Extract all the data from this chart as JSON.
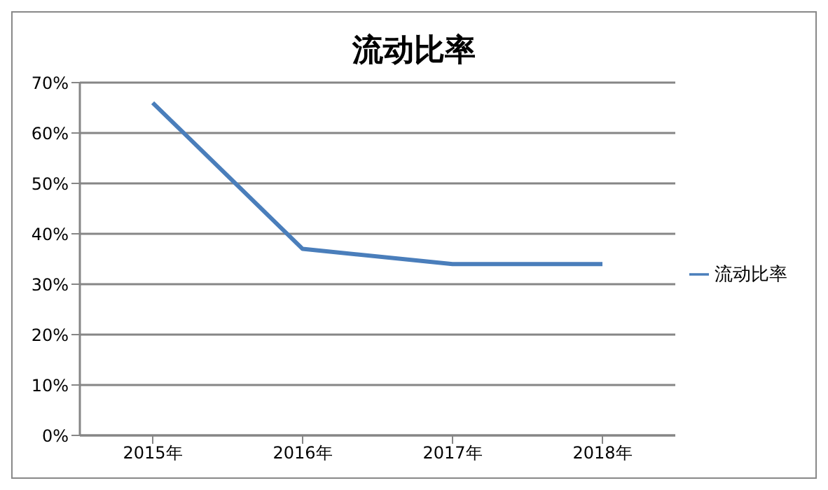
{
  "chart_data": {
    "type": "line",
    "title": "流动比率",
    "categories": [
      "2015年",
      "2016年",
      "2017年",
      "2018年"
    ],
    "series": [
      {
        "name": "流动比率",
        "color": "#4a7ebb",
        "values": [
          66,
          37,
          34,
          34
        ]
      }
    ],
    "ylim": [
      0,
      70
    ],
    "yticks": [
      {
        "value": 0,
        "label": "0%"
      },
      {
        "value": 10,
        "label": "10%"
      },
      {
        "value": 20,
        "label": "20%"
      },
      {
        "value": 30,
        "label": "30%"
      },
      {
        "value": 40,
        "label": "40%"
      },
      {
        "value": 50,
        "label": "50%"
      },
      {
        "value": 60,
        "label": "60%"
      },
      {
        "value": 70,
        "label": "70%"
      }
    ],
    "grid": "y",
    "legend": "right",
    "marker": "none",
    "line_style": "solid"
  }
}
